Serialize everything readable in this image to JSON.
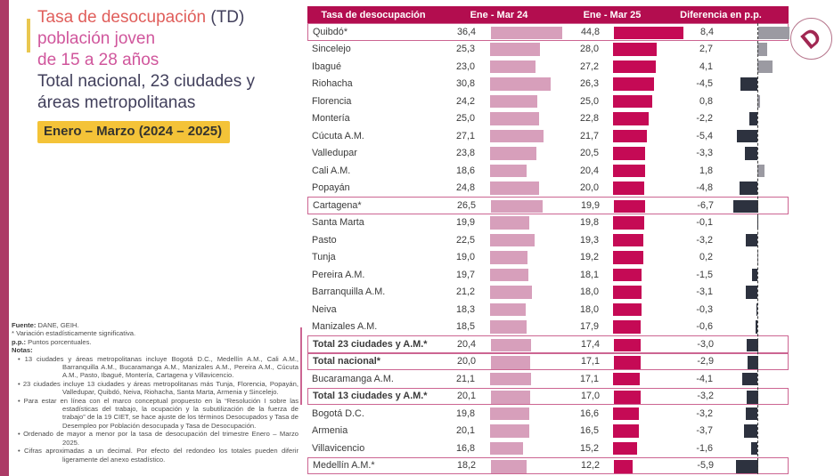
{
  "header": {
    "title_main": "Tasa de desocupación",
    "title_suffix": " (TD)",
    "title_line2": "población joven",
    "title_line3": "de 15 a 28 años",
    "subtitle_line1": "Total nacional, 23 ciudades y",
    "subtitle_line2": "áreas metropolitanas",
    "period_badge": "Enero – Marzo (2024 – 2025)"
  },
  "logo": {
    "letter": "D"
  },
  "table": {
    "headers": [
      "Tasa de desocupación",
      "Ene - Mar 24",
      "Ene - Mar 25",
      "Diferencia en p.p."
    ],
    "rows": [
      {
        "name": "Quibdó*",
        "v24": 36.4,
        "v25": 44.8,
        "diff": 8.4,
        "boxed": true,
        "bold": false
      },
      {
        "name": "Sincelejo",
        "v24": 25.3,
        "v25": 28.0,
        "diff": 2.7,
        "boxed": false,
        "bold": false
      },
      {
        "name": "Ibagué",
        "v24": 23.0,
        "v25": 27.2,
        "diff": 4.1,
        "boxed": false,
        "bold": false
      },
      {
        "name": "Riohacha",
        "v24": 30.8,
        "v25": 26.3,
        "diff": -4.5,
        "boxed": false,
        "bold": false
      },
      {
        "name": "Florencia",
        "v24": 24.2,
        "v25": 25.0,
        "diff": 0.8,
        "boxed": false,
        "bold": false
      },
      {
        "name": "Montería",
        "v24": 25.0,
        "v25": 22.8,
        "diff": -2.2,
        "boxed": false,
        "bold": false
      },
      {
        "name": "Cúcuta A.M.",
        "v24": 27.1,
        "v25": 21.7,
        "diff": -5.4,
        "boxed": false,
        "bold": false
      },
      {
        "name": "Valledupar",
        "v24": 23.8,
        "v25": 20.5,
        "diff": -3.3,
        "boxed": false,
        "bold": false
      },
      {
        "name": "Cali A.M.",
        "v24": 18.6,
        "v25": 20.4,
        "diff": 1.8,
        "boxed": false,
        "bold": false
      },
      {
        "name": "Popayán",
        "v24": 24.8,
        "v25": 20.0,
        "diff": -4.8,
        "boxed": false,
        "bold": false
      },
      {
        "name": "Cartagena*",
        "v24": 26.5,
        "v25": 19.9,
        "diff": -6.7,
        "boxed": true,
        "bold": false
      },
      {
        "name": "Santa Marta",
        "v24": 19.9,
        "v25": 19.8,
        "diff": -0.1,
        "boxed": false,
        "bold": false
      },
      {
        "name": "Pasto",
        "v24": 22.5,
        "v25": 19.3,
        "diff": -3.2,
        "boxed": false,
        "bold": false
      },
      {
        "name": "Tunja",
        "v24": 19.0,
        "v25": 19.2,
        "diff": 0.2,
        "boxed": false,
        "bold": false
      },
      {
        "name": "Pereira A.M.",
        "v24": 19.7,
        "v25": 18.1,
        "diff": -1.5,
        "boxed": false,
        "bold": false
      },
      {
        "name": "Barranquilla A.M.",
        "v24": 21.2,
        "v25": 18.0,
        "diff": -3.1,
        "boxed": false,
        "bold": false
      },
      {
        "name": "Neiva",
        "v24": 18.3,
        "v25": 18.0,
        "diff": -0.3,
        "boxed": false,
        "bold": false
      },
      {
        "name": "Manizales A.M.",
        "v24": 18.5,
        "v25": 17.9,
        "diff": -0.6,
        "boxed": false,
        "bold": false
      },
      {
        "name": "Total 23 ciudades y A.M.*",
        "v24": 20.4,
        "v25": 17.4,
        "diff": -3.0,
        "boxed": true,
        "bold": true
      },
      {
        "name": "Total nacional*",
        "v24": 20.0,
        "v25": 17.1,
        "diff": -2.9,
        "boxed": true,
        "bold": true
      },
      {
        "name": "Bucaramanga A.M.",
        "v24": 21.1,
        "v25": 17.1,
        "diff": -4.1,
        "boxed": false,
        "bold": false
      },
      {
        "name": "Total 13 ciudades y A.M.*",
        "v24": 20.1,
        "v25": 17.0,
        "diff": -3.2,
        "boxed": true,
        "bold": true
      },
      {
        "name": "Bogotá D.C.",
        "v24": 19.8,
        "v25": 16.6,
        "diff": -3.2,
        "boxed": false,
        "bold": false
      },
      {
        "name": "Armenia",
        "v24": 20.1,
        "v25": 16.5,
        "diff": -3.7,
        "boxed": false,
        "bold": false
      },
      {
        "name": "Villavicencio",
        "v24": 16.8,
        "v25": 15.2,
        "diff": -1.6,
        "boxed": false,
        "bold": false
      },
      {
        "name": "Medellín A.M.*",
        "v24": 18.2,
        "v25": 12.2,
        "diff": -5.9,
        "boxed": true,
        "bold": false
      }
    ]
  },
  "chart_data": {
    "type": "bar",
    "orientation": "horizontal",
    "title": "Tasa de desocupación (TD) población joven de 15 a 28 años — Total nacional, 23 ciudades y áreas metropolitanas, Enero – Marzo (2024 – 2025)",
    "categories": [
      "Quibdó*",
      "Sincelejo",
      "Ibagué",
      "Riohacha",
      "Florencia",
      "Montería",
      "Cúcuta A.M.",
      "Valledupar",
      "Cali A.M.",
      "Popayán",
      "Cartagena*",
      "Santa Marta",
      "Pasto",
      "Tunja",
      "Pereira A.M.",
      "Barranquilla A.M.",
      "Neiva",
      "Manizales A.M.",
      "Total 23 ciudades y A.M.*",
      "Total nacional*",
      "Bucaramanga A.M.",
      "Total 13 ciudades y A.M.*",
      "Bogotá D.C.",
      "Armenia",
      "Villavicencio",
      "Medellín A.M.*"
    ],
    "series": [
      {
        "name": "Ene - Mar 24",
        "values": [
          36.4,
          25.3,
          23.0,
          30.8,
          24.2,
          25.0,
          27.1,
          23.8,
          18.6,
          24.8,
          26.5,
          19.9,
          22.5,
          19.0,
          19.7,
          21.2,
          18.3,
          18.5,
          20.4,
          20.0,
          21.1,
          20.1,
          19.8,
          20.1,
          16.8,
          18.2
        ]
      },
      {
        "name": "Ene - Mar 25",
        "values": [
          44.8,
          28.0,
          27.2,
          26.3,
          25.0,
          22.8,
          21.7,
          20.5,
          20.4,
          20.0,
          19.9,
          19.8,
          19.3,
          19.2,
          18.1,
          18.0,
          18.0,
          17.9,
          17.4,
          17.1,
          17.1,
          17.0,
          16.6,
          16.5,
          15.2,
          12.2
        ]
      },
      {
        "name": "Diferencia en p.p.",
        "values": [
          8.4,
          2.7,
          4.1,
          -4.5,
          0.8,
          -2.2,
          -5.4,
          -3.3,
          1.8,
          -4.8,
          -6.7,
          -0.1,
          -3.2,
          0.2,
          -1.5,
          -3.1,
          -0.3,
          -0.6,
          -3.0,
          -2.9,
          -4.1,
          -3.2,
          -3.2,
          -3.7,
          -1.6,
          -5.9
        ]
      }
    ],
    "highlighted_categories": [
      "Quibdó*",
      "Cartagena*",
      "Total 23 ciudades y A.M.*",
      "Total nacional*",
      "Total 13 ciudades y A.M.*",
      "Medellín A.M.*"
    ],
    "decimal_separator": ",",
    "legend_position": "column headers",
    "grid": false,
    "sort": "descending by Ene - Mar 25"
  },
  "notes": {
    "fuente_label": "Fuente:",
    "fuente_text": " DANE, GEIH.",
    "significance": "* Variación estadísticamente significativa.",
    "pp_label": "p.p.:",
    "pp_text": " Puntos porcentuales.",
    "notas_label": "Notas:",
    "bullets": [
      "13 ciudades y áreas metropolitanas incluye Bogotá D.C., Medellín A.M., Cali A.M., Barranquilla A.M., Bucaramanga A.M., Manizales A.M., Pereira A.M., Cúcuta A.M., Pasto, Ibagué, Montería, Cartagena y Villavicencio.",
      "23 ciudades incluye 13 ciudades y áreas metropolitanas más Tunja, Florencia, Popayán, Valledupar, Quibdó, Neiva, Riohacha, Santa Marta, Armenia y Sincelejo.",
      "Para estar en línea con el marco conceptual propuesto en la “Resolución I sobre las estadísticas del trabajo, la ocupación y la subutilización de la fuerza de trabajo” de la 19 CIET, se hace ajuste de los términos Desocupados y Tasa de Desempleo por Población desocupada y Tasa de Desocupación.",
      "Ordenado de mayor a menor por la tasa de desocupación del trimestre Enero – Marzo 2025.",
      "Cifras aproximadas a un decimal. Por efecto del redondeo los totales pueden diferir ligeramente del anexo estadístico."
    ]
  },
  "colors": {
    "header_bg": "#b30d4f",
    "bar_2024": "#d79fbb",
    "bar_2025": "#c50a55",
    "diff_positive": "#9b9aa2",
    "diff_negative": "#2d323f",
    "box_outline": "#cc6592",
    "stripe": "#ac3a66",
    "badge_yellow": "#f4c338",
    "accent_yellow": "#e9c74f",
    "title_red": "#e05e5b",
    "title_pink": "#d0569c",
    "title_dark": "#413f5b"
  }
}
